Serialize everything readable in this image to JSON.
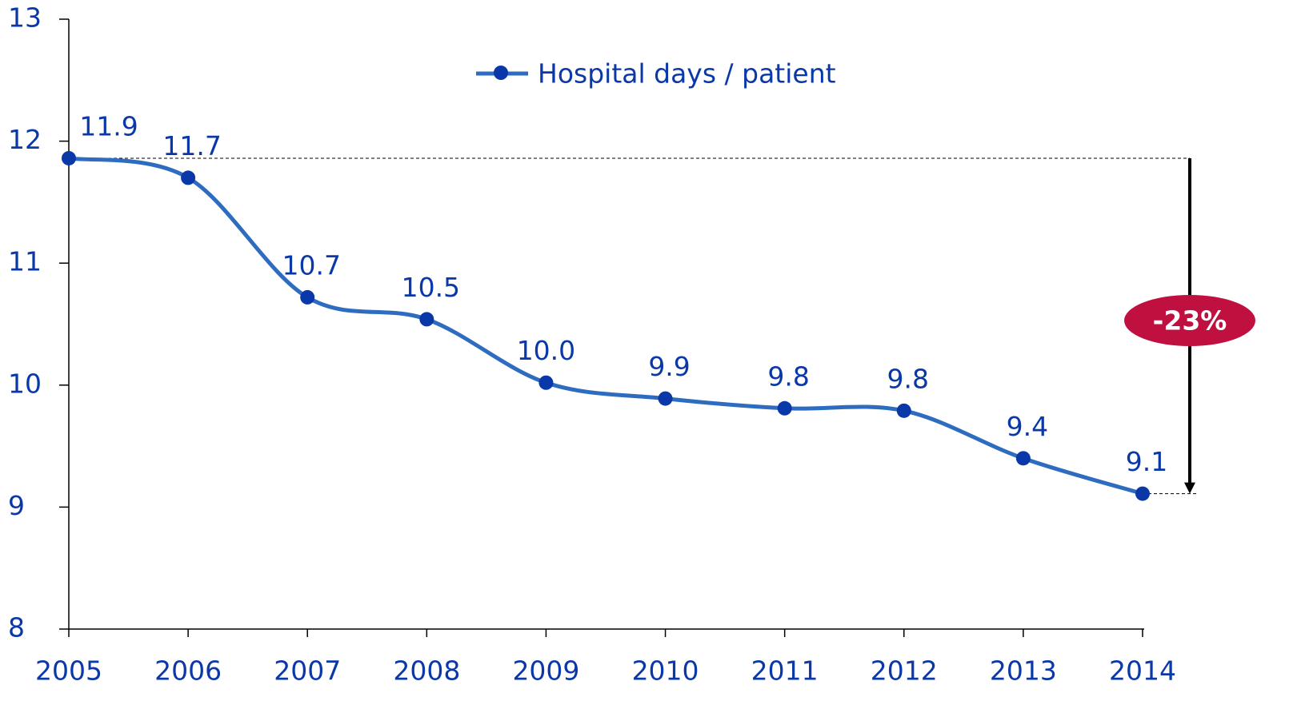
{
  "chart_data": {
    "type": "line",
    "categories": [
      "2005",
      "2006",
      "2007",
      "2008",
      "2009",
      "2010",
      "2011",
      "2012",
      "2013",
      "2014"
    ],
    "series": [
      {
        "name": "Hospital days / patient",
        "color": "#2e6cc0",
        "marker_color": "#0a38a8",
        "values": [
          11.86,
          11.7,
          10.72,
          10.54,
          10.02,
          9.89,
          9.81,
          9.79,
          9.4,
          9.11
        ],
        "value_labels": [
          "11.9",
          "11.7",
          "10.7",
          "10.5",
          "10.0",
          "9.9",
          "9.8",
          "9.8",
          "9.4",
          "9.1"
        ]
      }
    ],
    "ylim": [
      8,
      13
    ],
    "yticks": [
      8,
      9,
      10,
      11,
      12,
      13
    ],
    "annotation": "-23%",
    "annotation_color": "#c0103f",
    "legend": "top"
  }
}
